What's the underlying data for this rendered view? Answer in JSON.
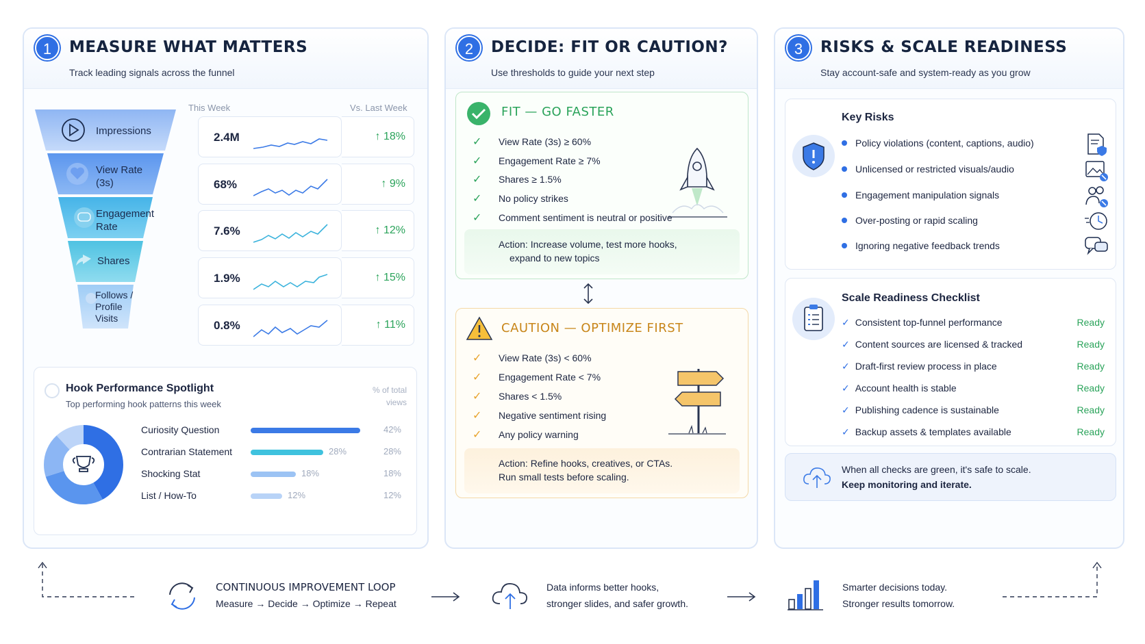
{
  "panels": [
    {
      "num": "1",
      "title": "MEASURE WHAT MATTERS",
      "subtitle": "Track leading signals across the funnel"
    },
    {
      "num": "2",
      "title": "DECIDE: FIT OR CAUTION?",
      "subtitle": "Use thresholds to guide your next step"
    },
    {
      "num": "3",
      "title": "RISKS & SCALE READINESS",
      "subtitle": "Stay account-safe and system-ready as you grow"
    }
  ],
  "funnel": {
    "col_this_week": "This Week",
    "col_vs_last": "Vs. Last Week",
    "stages": [
      {
        "label": "Impressions",
        "icon": "play-icon",
        "value": "2.4M",
        "change": "↑ 18%"
      },
      {
        "label": "View Rate (3s)",
        "icon": "heart-icon",
        "value": "68%",
        "change": "↑ 9%"
      },
      {
        "label": "Engagement Rate",
        "icon": "chat-icon",
        "value": "7.6%",
        "change": "↑ 12%"
      },
      {
        "label": "Shares",
        "icon": "share-icon",
        "value": "1.9%",
        "change": "↑ 15%"
      },
      {
        "label": "Follows / Profile Visits",
        "icon": "user-icon",
        "value": "0.8%",
        "change": "↑ 11%"
      }
    ]
  },
  "hook": {
    "title": "Hook Performance Spotlight",
    "subtitle": "Top performing hook patterns this week",
    "pct_head": "% of total views",
    "items": [
      {
        "label": "Curiosity Question",
        "pct": 42,
        "pct_label": "42%",
        "in_label": ""
      },
      {
        "label": "Contrarian Statement",
        "pct": 28,
        "pct_label": "28%",
        "in_label": "28%"
      },
      {
        "label": "Shocking Stat",
        "pct": 18,
        "pct_label": "18%",
        "in_label": "18%"
      },
      {
        "label": "List / How-To",
        "pct": 12,
        "pct_label": "12%",
        "in_label": "12%"
      }
    ]
  },
  "fit": {
    "title": "FIT — GO FASTER",
    "criteria": [
      "View Rate (3s) ≥ 60%",
      "Engagement Rate ≥ 7%",
      "Shares ≥ 1.5%",
      "No policy strikes",
      "Comment sentiment is neutral or positive"
    ],
    "action_line1": "Action: Increase volume, test more hooks,",
    "action_line2": "expand to new topics",
    "color": "#2aa35a"
  },
  "caution": {
    "title": "CAUTION — OPTIMIZE FIRST",
    "criteria": [
      "View Rate (3s) < 60%",
      "Engagement Rate < 7%",
      "Shares < 1.5%",
      "Negative sentiment rising",
      "Any policy warning"
    ],
    "action_line1": "Action: Refine hooks, creatives, or CTAs.",
    "action_line2": "Run small tests before scaling.",
    "color": "#e8a32c"
  },
  "risks": {
    "title": "Key Risks",
    "items": [
      {
        "label": "Policy violations (content, captions, audio)",
        "icon": "document-shield-icon"
      },
      {
        "label": "Unlicensed or restricted visuals/audio",
        "icon": "image-blocked-icon"
      },
      {
        "label": "Engagement manipulation signals",
        "icon": "users-alert-icon"
      },
      {
        "label": "Over-posting or rapid scaling",
        "icon": "clock-speed-icon"
      },
      {
        "label": "Ignoring negative feedback trends",
        "icon": "chat-bubbles-icon"
      }
    ]
  },
  "checklist": {
    "title": "Scale Readiness Checklist",
    "items": [
      {
        "label": "Consistent top-funnel performance",
        "status": "Ready"
      },
      {
        "label": "Content sources are licensed & tracked",
        "status": "Ready"
      },
      {
        "label": "Draft-first review process in place",
        "status": "Ready"
      },
      {
        "label": "Account health is stable",
        "status": "Ready"
      },
      {
        "label": "Publishing cadence is sustainable",
        "status": "Ready"
      },
      {
        "label": "Backup assets & templates available",
        "status": "Ready"
      }
    ]
  },
  "scale_note": {
    "line1": "When all checks are green, it's safe to scale.",
    "line2": "Keep monitoring and iterate."
  },
  "loop": {
    "title": "CONTINUOUS IMPROVEMENT LOOP",
    "steps": "Measure → Decide → Optimize → Repeat",
    "data_line1": "Data informs better hooks,",
    "data_line2": "stronger slides, and safer growth.",
    "result_line1": "Smarter decisions today.",
    "result_line2": "Stronger results tomorrow."
  },
  "colors": {
    "accent": "#2f6fe4",
    "positive": "#2aa35a",
    "warning": "#e8a32c"
  }
}
